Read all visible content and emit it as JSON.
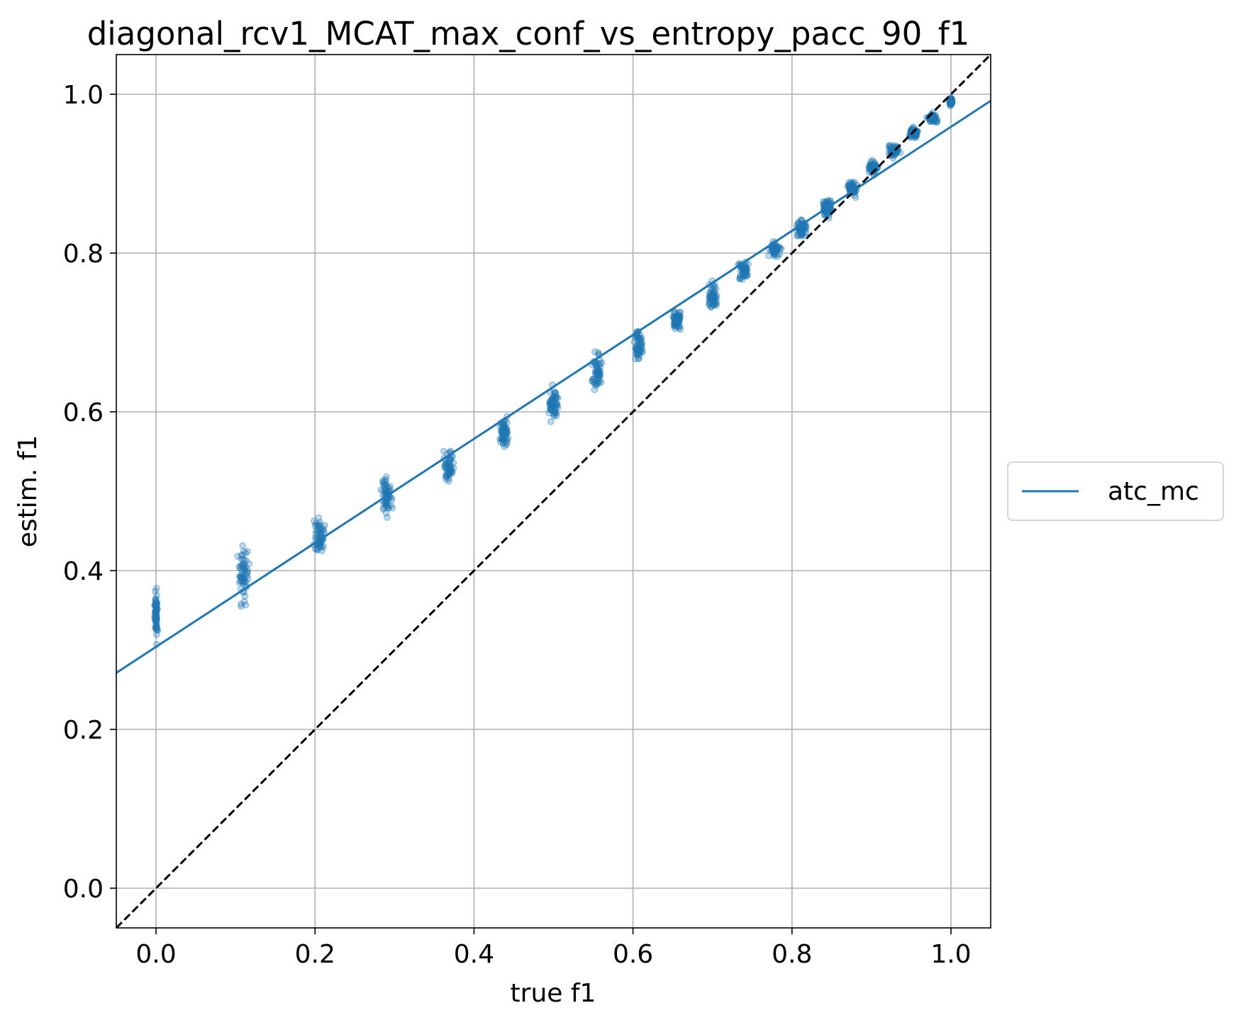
{
  "chart_data": {
    "type": "scatter",
    "title": "diagonal_rcv1_MCAT_max_conf_vs_entropy_pacc_90_f1",
    "xlabel": "true f1",
    "ylabel": "estim. f1",
    "xlim": [
      -0.05,
      1.05
    ],
    "ylim": [
      -0.05,
      1.05
    ],
    "xticks": [
      "0.0",
      "0.2",
      "0.4",
      "0.6",
      "0.8",
      "1.0"
    ],
    "yticks": [
      "0.0",
      "0.2",
      "0.4",
      "0.6",
      "0.8",
      "1.0"
    ],
    "grid": true,
    "legend_position": "outside-right",
    "reference_line": {
      "style": "dashed",
      "color": "#000000",
      "from": [
        -0.05,
        -0.05
      ],
      "to": [
        1.05,
        1.05
      ]
    },
    "series": [
      {
        "name": "atc_mc",
        "color": "#1f77b4",
        "fit_line": {
          "slope": 0.655,
          "intercept": 0.304
        },
        "clusters": [
          {
            "x": 0.0,
            "y_min": 0.3,
            "y_max": 0.38,
            "y_center": 0.345
          },
          {
            "x": 0.11,
            "y_min": 0.355,
            "y_max": 0.45,
            "y_center": 0.395
          },
          {
            "x": 0.205,
            "y_min": 0.415,
            "y_max": 0.48,
            "y_center": 0.445
          },
          {
            "x": 0.29,
            "y_min": 0.46,
            "y_max": 0.527,
            "y_center": 0.495
          },
          {
            "x": 0.368,
            "y_min": 0.5,
            "y_max": 0.56,
            "y_center": 0.53
          },
          {
            "x": 0.437,
            "y_min": 0.547,
            "y_max": 0.6,
            "y_center": 0.573
          },
          {
            "x": 0.5,
            "y_min": 0.58,
            "y_max": 0.635,
            "y_center": 0.61
          },
          {
            "x": 0.555,
            "y_min": 0.625,
            "y_max": 0.685,
            "y_center": 0.65
          },
          {
            "x": 0.607,
            "y_min": 0.665,
            "y_max": 0.708,
            "y_center": 0.685
          },
          {
            "x": 0.655,
            "y_min": 0.7,
            "y_max": 0.735,
            "y_center": 0.716
          },
          {
            "x": 0.7,
            "y_min": 0.72,
            "y_max": 0.765,
            "y_center": 0.745
          },
          {
            "x": 0.74,
            "y_min": 0.76,
            "y_max": 0.796,
            "y_center": 0.778
          },
          {
            "x": 0.778,
            "y_min": 0.79,
            "y_max": 0.82,
            "y_center": 0.805
          },
          {
            "x": 0.812,
            "y_min": 0.818,
            "y_max": 0.847,
            "y_center": 0.832
          },
          {
            "x": 0.845,
            "y_min": 0.84,
            "y_max": 0.87,
            "y_center": 0.857
          },
          {
            "x": 0.875,
            "y_min": 0.87,
            "y_max": 0.895,
            "y_center": 0.881
          },
          {
            "x": 0.902,
            "y_min": 0.898,
            "y_max": 0.918,
            "y_center": 0.907
          },
          {
            "x": 0.928,
            "y_min": 0.918,
            "y_max": 0.938,
            "y_center": 0.929
          },
          {
            "x": 0.953,
            "y_min": 0.94,
            "y_max": 0.96,
            "y_center": 0.951
          },
          {
            "x": 0.977,
            "y_min": 0.962,
            "y_max": 0.978,
            "y_center": 0.97
          },
          {
            "x": 1.0,
            "y_min": 0.983,
            "y_max": 0.998,
            "y_center": 0.991
          }
        ]
      }
    ]
  }
}
